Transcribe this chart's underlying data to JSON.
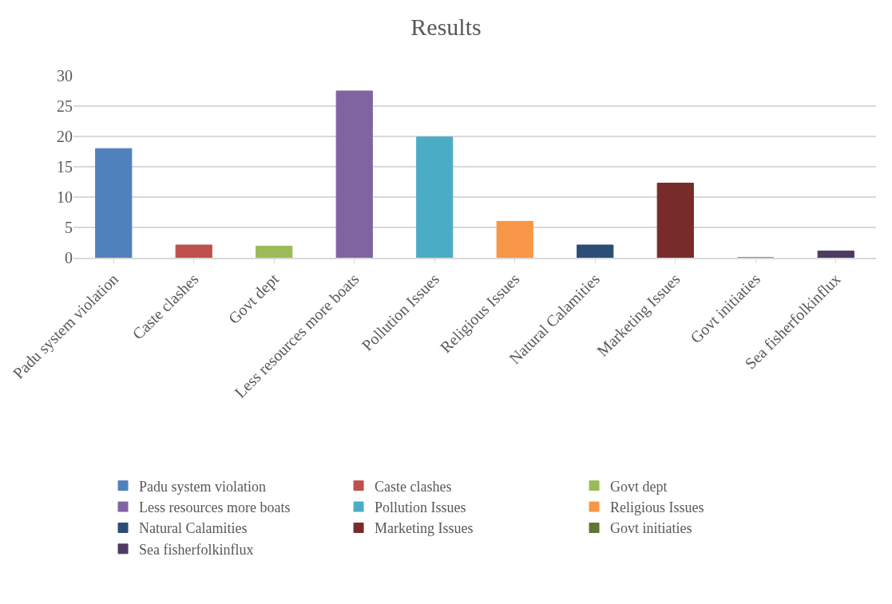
{
  "chart_data": {
    "type": "bar",
    "title": "Results",
    "categories": [
      "Padu system violation",
      "Caste clashes",
      "Govt dept",
      "Less resources more boats",
      "Pollution Issues",
      "Religious Issues",
      "Natural Calamities",
      "Marketing Issues",
      "Govt initiaties",
      "Sea fisherfolkinflux"
    ],
    "series": [
      {
        "name": "Padu system violation",
        "color": "#4f81bd",
        "values": [
          18.0,
          null,
          null,
          null,
          null,
          null,
          null,
          null,
          null,
          null
        ]
      },
      {
        "name": "Caste clashes",
        "color": "#c0504d",
        "values": [
          null,
          2.1,
          null,
          null,
          null,
          null,
          null,
          null,
          null,
          null
        ]
      },
      {
        "name": "Govt dept",
        "color": "#9bbb59",
        "values": [
          null,
          null,
          1.9,
          null,
          null,
          null,
          null,
          null,
          null,
          null
        ]
      },
      {
        "name": "Less resources more boats",
        "color": "#8064a2",
        "values": [
          null,
          null,
          null,
          27.5,
          null,
          null,
          null,
          null,
          null,
          null
        ]
      },
      {
        "name": "Pollution Issues",
        "color": "#4bacc6",
        "values": [
          null,
          null,
          null,
          null,
          19.9,
          null,
          null,
          null,
          null,
          null
        ]
      },
      {
        "name": "Religious Issues",
        "color": "#f79646",
        "values": [
          null,
          null,
          null,
          null,
          null,
          6.0,
          null,
          null,
          null,
          null
        ]
      },
      {
        "name": "Natural Calamities",
        "color": "#2c4d75",
        "values": [
          null,
          null,
          null,
          null,
          null,
          null,
          2.1,
          null,
          null,
          null
        ]
      },
      {
        "name": "Marketing Issues",
        "color": "#772c2a",
        "values": [
          null,
          null,
          null,
          null,
          null,
          null,
          null,
          12.3,
          null,
          null
        ]
      },
      {
        "name": "Govt initiaties",
        "color": "#5f7530",
        "values": [
          null,
          null,
          null,
          null,
          null,
          null,
          null,
          null,
          0,
          null
        ]
      },
      {
        "name": "Sea fisherfolkinflux",
        "color": "#4d3b62",
        "values": [
          null,
          null,
          null,
          null,
          null,
          null,
          null,
          null,
          null,
          1.1
        ]
      }
    ],
    "ylim": [
      0,
      30
    ],
    "yticks": [
      0,
      5,
      10,
      15,
      20,
      25,
      30
    ],
    "grid": "y",
    "legend": "bottom"
  }
}
